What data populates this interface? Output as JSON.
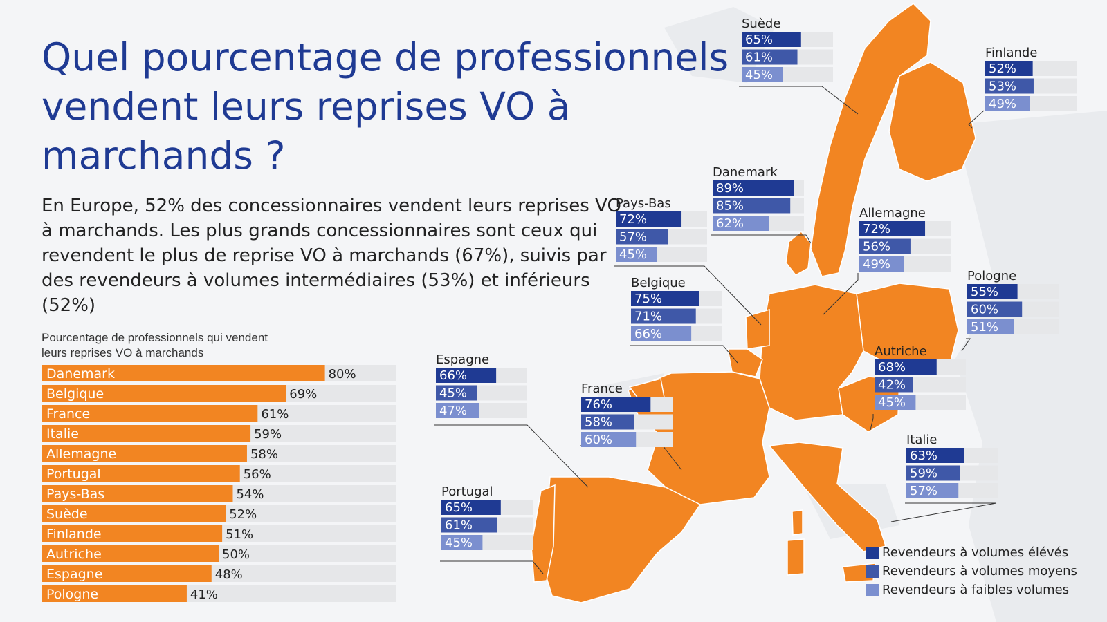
{
  "title": "Quel pourcentage de professionnels vendent leurs reprises VO à marchands ?",
  "lead": "En Europe, 52% des concessionnaires vendent leurs reprises VO à marchands. Les plus grands concessionnaires sont ceux qui revendent le plus de reprise VO à marchands (67%), suivis par des revendeurs à volumes intermédiaires (53%) et inférieurs (52%)",
  "bar_caption": {
    "line1": "Pourcentage de professionnels qui vendent",
    "line2": "leurs reprises VO à marchands"
  },
  "colors": {
    "orange": "#f28522",
    "track": "#e6e7e9",
    "high": "#1f3a93",
    "medium": "#3f58a8",
    "low": "#7b8fcf",
    "title": "#1f3a93"
  },
  "legend": [
    {
      "label": "Revendeurs à volumes élévés",
      "color": "#1f3a93"
    },
    {
      "label": "Revendeurs à volumes moyens",
      "color": "#3f58a8"
    },
    {
      "label": "Revendeurs à faibles volumes",
      "color": "#7b8fcf"
    }
  ],
  "chart_data": [
    {
      "type": "bar",
      "orientation": "horizontal",
      "title": "Pourcentage de professionnels qui vendent leurs reprises VO à marchands",
      "categories": [
        "Danemark",
        "Belgique",
        "France",
        "Italie",
        "Allemagne",
        "Portugal",
        "Pays-Bas",
        "Suède",
        "Finlande",
        "Autriche",
        "Espagne",
        "Pologne"
      ],
      "values": [
        80,
        69,
        61,
        59,
        58,
        56,
        54,
        52,
        51,
        50,
        48,
        41
      ],
      "value_labels": [
        "80%",
        "69%",
        "61%",
        "59%",
        "58%",
        "56%",
        "54%",
        "52%",
        "51%",
        "50%",
        "48%",
        "41%"
      ],
      "xlim": [
        0,
        100
      ],
      "grid": false
    },
    {
      "type": "bar",
      "orientation": "horizontal",
      "subtype": "map-annotated grouped bars",
      "series_names": [
        "Revendeurs à volumes élévés",
        "Revendeurs à volumes moyens",
        "Revendeurs à faibles volumes"
      ],
      "xlim": [
        0,
        100
      ],
      "countries": [
        {
          "name": "Suède",
          "values": [
            65,
            61,
            45
          ],
          "labels": [
            "65%",
            "61%",
            "45%"
          ]
        },
        {
          "name": "Finlande",
          "values": [
            52,
            53,
            49
          ],
          "labels": [
            "52%",
            "53%",
            "49%"
          ]
        },
        {
          "name": "Danemark",
          "values": [
            89,
            85,
            62
          ],
          "labels": [
            "89%",
            "85%",
            "62%"
          ]
        },
        {
          "name": "Pays-Bas",
          "values": [
            72,
            57,
            45
          ],
          "labels": [
            "72%",
            "57%",
            "45%"
          ]
        },
        {
          "name": "Allemagne",
          "values": [
            72,
            56,
            49
          ],
          "labels": [
            "72%",
            "56%",
            "49%"
          ]
        },
        {
          "name": "Belgique",
          "values": [
            75,
            71,
            66
          ],
          "labels": [
            "75%",
            "71%",
            "66%"
          ]
        },
        {
          "name": "Pologne",
          "values": [
            55,
            60,
            51
          ],
          "labels": [
            "55%",
            "60%",
            "51%"
          ]
        },
        {
          "name": "Autriche",
          "values": [
            68,
            42,
            45
          ],
          "labels": [
            "68%",
            "42%",
            "45%"
          ]
        },
        {
          "name": "Espagne",
          "values": [
            66,
            45,
            47
          ],
          "labels": [
            "66%",
            "45%",
            "47%"
          ]
        },
        {
          "name": "France",
          "values": [
            76,
            58,
            60
          ],
          "labels": [
            "76%",
            "58%",
            "60%"
          ]
        },
        {
          "name": "Italie",
          "values": [
            63,
            59,
            57
          ],
          "labels": [
            "63%",
            "59%",
            "57%"
          ]
        },
        {
          "name": "Portugal",
          "values": [
            65,
            61,
            45
          ],
          "labels": [
            "65%",
            "61%",
            "45%"
          ]
        }
      ]
    }
  ]
}
